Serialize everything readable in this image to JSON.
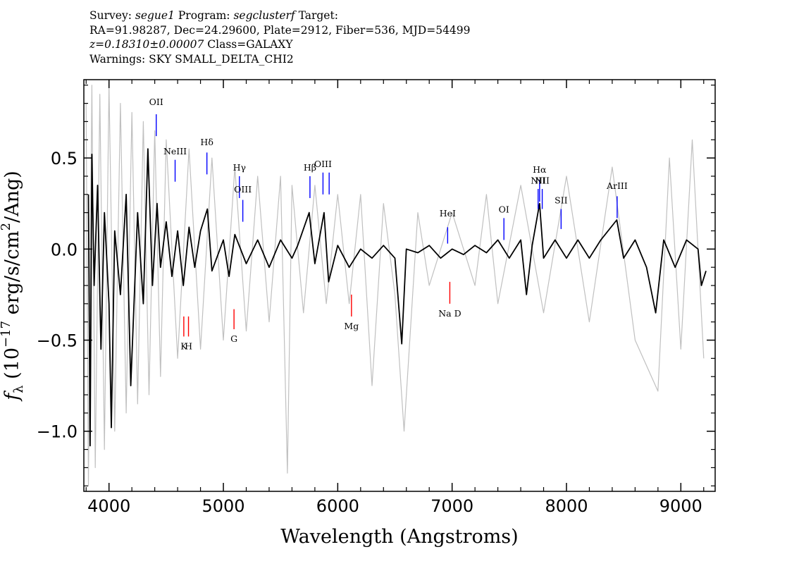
{
  "header": {
    "survey_label": "Survey: ",
    "survey": "segue1",
    "program_label": " Program: ",
    "program": "segclusterf",
    "target_label": " Target:",
    "line2": "RA=91.98287, Dec=24.29600, Plate=2912, Fiber=536, MJD=54499",
    "redshift": "z=0.18310±0.00007",
    "class_text": " Class=GALAXY",
    "warnings": "Warnings: SKY SMALL_DELTA_CHI2"
  },
  "chart_data": {
    "type": "line",
    "xlabel": "Wavelength (Angstroms)",
    "ylabel_prefix": "f",
    "ylabel_sub": "λ",
    "ylabel_rest": " (10",
    "ylabel_exp": "−17",
    "ylabel_units": " erg/s/cm",
    "ylabel_units_exp": "2",
    "ylabel_tail": "/Ang)",
    "xlim": [
      3780,
      9300
    ],
    "ylim": [
      -1.33,
      0.93
    ],
    "xticks": [
      4000,
      5000,
      6000,
      7000,
      8000,
      9000
    ],
    "xtick_labels": [
      "4000",
      "5000",
      "6000",
      "7000",
      "8000",
      "9000"
    ],
    "yticks": [
      0.5,
      0.0,
      -0.5,
      -1.0
    ],
    "ytick_labels": [
      "0.5",
      "0.0",
      "−0.5",
      "−1.0"
    ],
    "series": [
      {
        "role": "error",
        "color": "#c0c0c0",
        "points": [
          [
            3800,
            0.8
          ],
          [
            3820,
            -1.3
          ],
          [
            3850,
            0.9
          ],
          [
            3880,
            -1.2
          ],
          [
            3920,
            0.85
          ],
          [
            3960,
            -1.1
          ],
          [
            4000,
            0.9
          ],
          [
            4050,
            -1.0
          ],
          [
            4100,
            0.8
          ],
          [
            4150,
            -0.9
          ],
          [
            4200,
            0.75
          ],
          [
            4250,
            -0.85
          ],
          [
            4300,
            0.7
          ],
          [
            4350,
            -0.8
          ],
          [
            4400,
            0.65
          ],
          [
            4450,
            -0.7
          ],
          [
            4500,
            0.6
          ],
          [
            4600,
            -0.6
          ],
          [
            4700,
            0.55
          ],
          [
            4800,
            -0.55
          ],
          [
            4900,
            0.5
          ],
          [
            5000,
            -0.5
          ],
          [
            5100,
            0.45
          ],
          [
            5200,
            -0.45
          ],
          [
            5300,
            0.4
          ],
          [
            5400,
            -0.4
          ],
          [
            5500,
            0.4
          ],
          [
            5560,
            -1.23
          ],
          [
            5600,
            0.35
          ],
          [
            5700,
            -0.35
          ],
          [
            5800,
            0.35
          ],
          [
            5900,
            -0.3
          ],
          [
            6000,
            0.3
          ],
          [
            6100,
            -0.3
          ],
          [
            6200,
            0.3
          ],
          [
            6300,
            -0.75
          ],
          [
            6400,
            0.25
          ],
          [
            6500,
            -0.25
          ],
          [
            6580,
            -1.0
          ],
          [
            6700,
            0.2
          ],
          [
            6800,
            -0.2
          ],
          [
            7000,
            0.2
          ],
          [
            7200,
            -0.2
          ],
          [
            7300,
            0.3
          ],
          [
            7400,
            -0.3
          ],
          [
            7600,
            0.35
          ],
          [
            7800,
            -0.35
          ],
          [
            8000,
            0.4
          ],
          [
            8200,
            -0.4
          ],
          [
            8400,
            0.45
          ],
          [
            8600,
            -0.5
          ],
          [
            8800,
            -0.78
          ],
          [
            8900,
            0.5
          ],
          [
            9000,
            -0.55
          ],
          [
            9100,
            0.6
          ],
          [
            9200,
            -0.6
          ]
        ]
      },
      {
        "role": "flux",
        "color": "#000000",
        "points": [
          [
            3820,
            0.3
          ],
          [
            3835,
            -1.08
          ],
          [
            3850,
            0.52
          ],
          [
            3870,
            -0.2
          ],
          [
            3900,
            0.35
          ],
          [
            3930,
            -0.55
          ],
          [
            3960,
            0.2
          ],
          [
            4000,
            -0.3
          ],
          [
            4020,
            -0.98
          ],
          [
            4050,
            0.1
          ],
          [
            4100,
            -0.25
          ],
          [
            4150,
            0.3
          ],
          [
            4190,
            -0.75
          ],
          [
            4250,
            0.2
          ],
          [
            4300,
            -0.3
          ],
          [
            4340,
            0.55
          ],
          [
            4380,
            -0.2
          ],
          [
            4420,
            0.25
          ],
          [
            4450,
            -0.1
          ],
          [
            4500,
            0.15
          ],
          [
            4550,
            -0.15
          ],
          [
            4600,
            0.1
          ],
          [
            4650,
            -0.2
          ],
          [
            4700,
            0.12
          ],
          [
            4750,
            -0.1
          ],
          [
            4800,
            0.1
          ],
          [
            4860,
            0.22
          ],
          [
            4900,
            -0.12
          ],
          [
            5000,
            0.05
          ],
          [
            5050,
            -0.15
          ],
          [
            5100,
            0.08
          ],
          [
            5200,
            -0.08
          ],
          [
            5300,
            0.05
          ],
          [
            5400,
            -0.1
          ],
          [
            5500,
            0.05
          ],
          [
            5600,
            -0.05
          ],
          [
            5650,
            0.02
          ],
          [
            5750,
            0.2
          ],
          [
            5800,
            -0.08
          ],
          [
            5880,
            0.2
          ],
          [
            5920,
            -0.18
          ],
          [
            6000,
            0.02
          ],
          [
            6100,
            -0.1
          ],
          [
            6200,
            0.0
          ],
          [
            6300,
            -0.05
          ],
          [
            6400,
            0.02
          ],
          [
            6500,
            -0.05
          ],
          [
            6560,
            -0.52
          ],
          [
            6600,
            0.0
          ],
          [
            6700,
            -0.02
          ],
          [
            6800,
            0.02
          ],
          [
            6900,
            -0.05
          ],
          [
            7000,
            0.0
          ],
          [
            7100,
            -0.03
          ],
          [
            7200,
            0.02
          ],
          [
            7300,
            -0.02
          ],
          [
            7400,
            0.05
          ],
          [
            7500,
            -0.05
          ],
          [
            7600,
            0.05
          ],
          [
            7650,
            -0.25
          ],
          [
            7700,
            0.02
          ],
          [
            7765,
            0.25
          ],
          [
            7800,
            -0.05
          ],
          [
            7900,
            0.05
          ],
          [
            8000,
            -0.05
          ],
          [
            8100,
            0.05
          ],
          [
            8200,
            -0.05
          ],
          [
            8300,
            0.05
          ],
          [
            8440,
            0.16
          ],
          [
            8500,
            -0.05
          ],
          [
            8600,
            0.05
          ],
          [
            8700,
            -0.1
          ],
          [
            8780,
            -0.35
          ],
          [
            8850,
            0.05
          ],
          [
            8950,
            -0.1
          ],
          [
            9050,
            0.05
          ],
          [
            9150,
            0.0
          ],
          [
            9180,
            -0.2
          ],
          [
            9220,
            -0.12
          ]
        ]
      }
    ],
    "emission_lines": [
      {
        "label": "OII",
        "x": 4413,
        "y_label": 0.79,
        "y0": 0.74,
        "y1": 0.62
      },
      {
        "label": "NeIII",
        "x": 4578,
        "y_label": 0.52,
        "y0": 0.49,
        "y1": 0.37
      },
      {
        "label": "Hδ",
        "x": 4856,
        "y_label": 0.57,
        "y0": 0.53,
        "y1": 0.41
      },
      {
        "label": "Hγ",
        "x": 5140,
        "y_label": 0.43,
        "y0": 0.4,
        "y1": 0.28
      },
      {
        "label": "OIII",
        "x": 5170,
        "y_label": 0.31,
        "y0": 0.27,
        "y1": 0.15
      },
      {
        "label": "Hβ",
        "x": 5757,
        "y_label": 0.43,
        "y0": 0.4,
        "y1": 0.28
      },
      {
        "label": "OIII",
        "x": 5871,
        "y_label": 0.45,
        "y0": 0.42,
        "y1": 0.3
      },
      {
        "label": "",
        "x": 5925,
        "y_label": 0,
        "y0": 0.42,
        "y1": 0.3
      },
      {
        "label": "HeI",
        "x": 6961,
        "y_label": 0.18,
        "y0": 0.12,
        "y1": 0.03
      },
      {
        "label": "OI",
        "x": 7453,
        "y_label": 0.2,
        "y0": 0.17,
        "y1": 0.05
      },
      {
        "label": "Hα",
        "x": 7765,
        "y_label": 0.42,
        "y0": 0.38,
        "y1": 0.26
      },
      {
        "label": "NII",
        "x": 7752,
        "y_label": 0.36,
        "y0": 0.33,
        "y1": 0.22
      },
      {
        "label": "NII",
        "x": 7788,
        "y_label": 0.36,
        "y0": 0.33,
        "y1": 0.22
      },
      {
        "label": "SII",
        "x": 7953,
        "y_label": 0.25,
        "y0": 0.22,
        "y1": 0.11
      },
      {
        "label": "ArIII",
        "x": 8443,
        "y_label": 0.33,
        "y0": 0.29,
        "y1": 0.17
      }
    ],
    "absorption_lines": [
      {
        "label": "K",
        "x": 4654,
        "y0": -0.37,
        "y1": -0.48,
        "y_label": -0.55
      },
      {
        "label": "H",
        "x": 4695,
        "y0": -0.37,
        "y1": -0.48,
        "y_label": -0.55
      },
      {
        "label": "G",
        "x": 5093,
        "y0": -0.33,
        "y1": -0.44,
        "y_label": -0.51
      },
      {
        "label": "Mg",
        "x": 6120,
        "y0": -0.25,
        "y1": -0.37,
        "y_label": -0.44
      },
      {
        "label": "Na D",
        "x": 6980,
        "y0": -0.18,
        "y1": -0.3,
        "y_label": -0.37
      }
    ],
    "colors": {
      "emission": "#0000ff",
      "absorption": "#ff0000",
      "error": "#c0c0c0",
      "flux": "#000000"
    }
  }
}
